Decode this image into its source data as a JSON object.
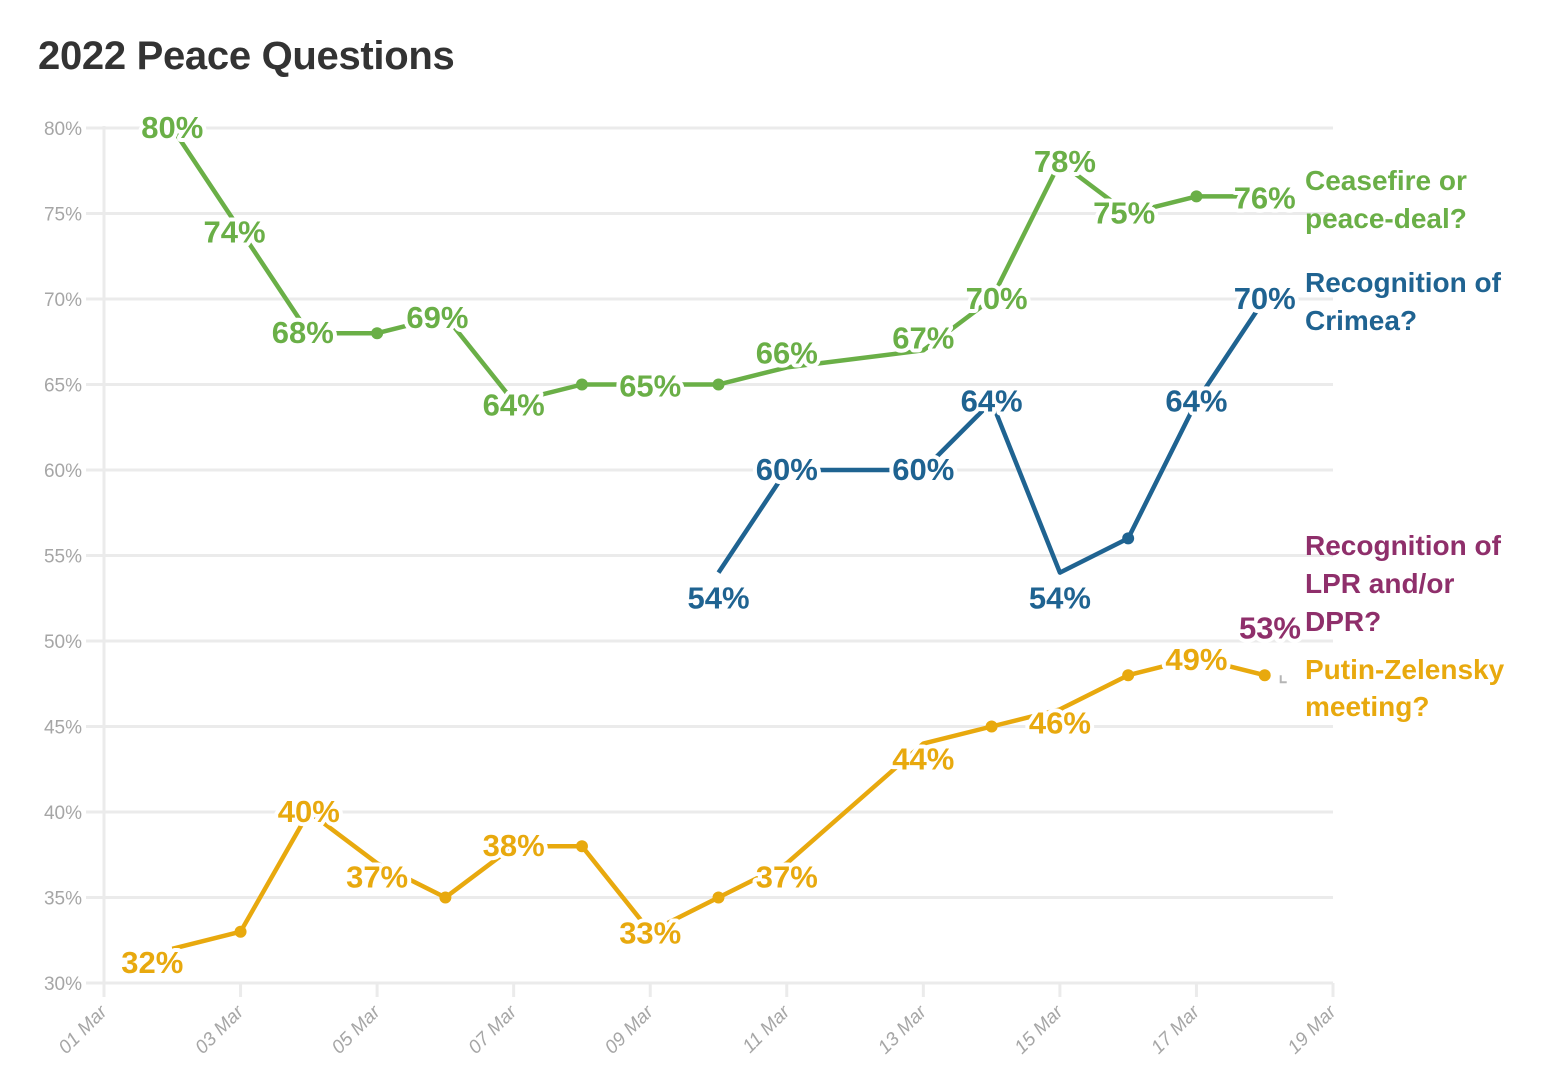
{
  "chart_data": {
    "type": "line",
    "title": "2022 Peace Questions",
    "xlabel": "",
    "ylabel": "",
    "ylim": [
      30,
      80
    ],
    "yticks": [
      30,
      35,
      40,
      45,
      50,
      55,
      60,
      65,
      70,
      75,
      80
    ],
    "ytick_labels": [
      "30%",
      "35%",
      "40%",
      "45%",
      "50%",
      "55%",
      "60%",
      "65%",
      "70%",
      "75%",
      "80%"
    ],
    "xlim_day": [
      1,
      19
    ],
    "xticks_day": [
      1,
      3,
      5,
      7,
      9,
      11,
      13,
      15,
      17,
      19
    ],
    "xtick_labels": [
      "01 Mar",
      "03 Mar",
      "05 Mar",
      "07 Mar",
      "09 Mar",
      "11 Mar",
      "13 Mar",
      "15 Mar",
      "17 Mar",
      "19 Mar"
    ],
    "grid": true,
    "legend": "direct labels at right end of each line",
    "series": [
      {
        "name": "Ceasefire or peace-deal?",
        "label_lines": [
          "Ceasefire or",
          "peace-deal?"
        ],
        "color": "#6aaf47",
        "x_day": [
          2,
          3,
          4,
          5,
          6,
          7,
          8,
          9,
          10,
          11,
          13,
          14,
          15,
          16,
          17,
          18
        ],
        "values": [
          80,
          74,
          68,
          68,
          69,
          64,
          65,
          65,
          65,
          66,
          67,
          70,
          78,
          75,
          76,
          76
        ],
        "labeled": [
          true,
          true,
          true,
          false,
          true,
          true,
          false,
          true,
          false,
          true,
          true,
          true,
          true,
          true,
          false,
          true
        ],
        "value_labels": [
          "80%",
          "74%",
          "68%",
          "68%",
          "69%",
          "64%",
          "65%",
          "65%",
          "65%",
          "66%",
          "67%",
          "70%",
          "78%",
          "75%",
          "76%",
          "76%"
        ]
      },
      {
        "name": "Recognition of Crimea?",
        "label_lines": [
          "Recognition of",
          "Crimea?"
        ],
        "color": "#1f6391",
        "x_day": [
          10,
          11,
          13,
          14,
          15,
          16,
          17,
          18
        ],
        "values": [
          54,
          60,
          60,
          64,
          54,
          56,
          64,
          70
        ],
        "labeled": [
          true,
          true,
          true,
          true,
          true,
          false,
          true,
          true
        ],
        "value_labels": [
          "54%",
          "60%",
          "60%",
          "64%",
          "54%",
          "56%",
          "64%",
          "70%"
        ]
      },
      {
        "name": "Recognition of LPR and/or DPR?",
        "label_lines": [
          "Recognition of",
          "LPR and/or",
          "DPR?"
        ],
        "color": "#8f2f6b",
        "x_day": [
          18
        ],
        "values": [
          53
        ],
        "labeled": [
          true
        ],
        "value_labels": [
          "53%"
        ]
      },
      {
        "name": "Putin-Zelensky meeting?",
        "label_lines": [
          "Putin-Zelensky",
          "meeting?"
        ],
        "color": "#e8a90e",
        "x_day": [
          2,
          3,
          4,
          5,
          6,
          7,
          8,
          9,
          10,
          11,
          13,
          14,
          15,
          16,
          17,
          18
        ],
        "values": [
          32,
          33,
          40,
          37,
          35,
          38,
          38,
          33,
          35,
          37,
          44,
          45,
          46,
          48,
          49,
          48
        ],
        "labeled": [
          true,
          false,
          true,
          true,
          false,
          true,
          false,
          true,
          false,
          true,
          true,
          false,
          true,
          false,
          true,
          false
        ],
        "value_labels": [
          "32%",
          "33%",
          "40%",
          "37%",
          "35%",
          "38%",
          "38%",
          "33%",
          "35%",
          "37%",
          "44%",
          "45%",
          "46%",
          "48%",
          "49%",
          "48%"
        ]
      }
    ]
  }
}
